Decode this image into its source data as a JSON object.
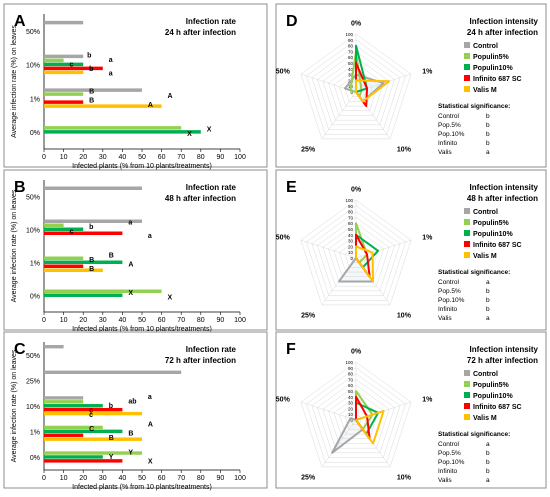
{
  "colors": {
    "Control": "#a6a6a6",
    "Populin5%": "#92d050",
    "Populin10%": "#00b050",
    "Infinito 687 SC": "#ff0000",
    "Valis M": "#ffc000"
  },
  "chart_data": [
    {
      "panel": "A",
      "type": "bar",
      "orientation": "horizontal",
      "title": "Infection rate",
      "subtitle": "24 h after infection",
      "xlabel": "Infected plants (% from 10 plants/treatments)",
      "ylabel": "Average infection rate (%) on leaves",
      "xlim": [
        0,
        100
      ],
      "x_ticks": [
        "0",
        "10",
        "20",
        "30",
        "40",
        "50",
        "60",
        "70",
        "80",
        "90",
        "100"
      ],
      "categories": [
        "50%",
        "10%",
        "1%",
        "0%"
      ],
      "series": [
        {
          "name": "Control",
          "values": [
            20,
            20,
            50,
            0
          ]
        },
        {
          "name": "Populin5%",
          "values": [
            0,
            10,
            20,
            70
          ]
        },
        {
          "name": "Populin10%",
          "values": [
            0,
            20,
            0,
            80
          ]
        },
        {
          "name": "Infinito 687 SC",
          "values": [
            0,
            30,
            20,
            0
          ]
        },
        {
          "name": "Valis M",
          "values": [
            0,
            20,
            60,
            0
          ]
        }
      ],
      "annotations": [
        {
          "category": "10%",
          "text": "b",
          "x": 21
        },
        {
          "category": "10%",
          "text": "a",
          "x": 32
        },
        {
          "category": "10%",
          "text": "c",
          "x": 12
        },
        {
          "category": "10%",
          "text": "b",
          "x": 22
        },
        {
          "category": "10%",
          "text": "a",
          "x": 32
        },
        {
          "category": "1%",
          "text": "B",
          "x": 22
        },
        {
          "category": "1%",
          "text": "A",
          "x": 62
        },
        {
          "category": "1%",
          "text": "B",
          "x": 22
        },
        {
          "category": "1%",
          "text": "A",
          "x": 52
        },
        {
          "category": "0%",
          "text": "X",
          "x": 82
        },
        {
          "category": "0%",
          "text": "X",
          "x": 72
        }
      ]
    },
    {
      "panel": "B",
      "type": "bar",
      "orientation": "horizontal",
      "title": "Infection rate",
      "subtitle": "48 h after infection",
      "xlabel": "Infected plants (% from 10 plants/treatments)",
      "ylabel": "Average infection rate (%) on leaves",
      "xlim": [
        0,
        100
      ],
      "x_ticks": [
        "0",
        "10",
        "20",
        "30",
        "40",
        "50",
        "60",
        "70",
        "80",
        "90",
        "100"
      ],
      "categories": [
        "50%",
        "10%",
        "1%",
        "0%"
      ],
      "series": [
        {
          "name": "Control",
          "values": [
            50,
            50,
            0,
            0
          ]
        },
        {
          "name": "Populin5%",
          "values": [
            0,
            10,
            20,
            60
          ]
        },
        {
          "name": "Populin10%",
          "values": [
            0,
            20,
            40,
            40
          ]
        },
        {
          "name": "Infinito 687 SC",
          "values": [
            0,
            40,
            20,
            0
          ]
        },
        {
          "name": "Valis M",
          "values": [
            0,
            0,
            30,
            0
          ]
        }
      ],
      "annotations": [
        {
          "category": "10%",
          "text": "a",
          "x": 42
        },
        {
          "category": "10%",
          "text": "b",
          "x": 22
        },
        {
          "category": "10%",
          "text": "c",
          "x": 12
        },
        {
          "category": "10%",
          "text": "a",
          "x": 52
        },
        {
          "category": "1%",
          "text": "B",
          "x": 32
        },
        {
          "category": "1%",
          "text": "B",
          "x": 22
        },
        {
          "category": "1%",
          "text": "A",
          "x": 42
        },
        {
          "category": "1%",
          "text": "B",
          "x": 22
        },
        {
          "category": "0%",
          "text": "X",
          "x": 42
        },
        {
          "category": "0%",
          "text": "X",
          "x": 62
        }
      ]
    },
    {
      "panel": "C",
      "type": "bar",
      "orientation": "horizontal",
      "title": "Infection rate",
      "subtitle": "72 h after infection",
      "xlabel": "Infected plants (% from 10 plants/treatments)",
      "ylabel": "Average infection rate (%) on leaves",
      "xlim": [
        0,
        100
      ],
      "x_ticks": [
        "0",
        "10",
        "20",
        "30",
        "40",
        "50",
        "60",
        "70",
        "80",
        "90",
        "100"
      ],
      "categories": [
        "50%",
        "25%",
        "10%",
        "1%",
        "0%"
      ],
      "series": [
        {
          "name": "Control",
          "values": [
            10,
            70,
            20,
            0,
            0
          ]
        },
        {
          "name": "Populin5%",
          "values": [
            0,
            0,
            20,
            30,
            50
          ]
        },
        {
          "name": "Populin10%",
          "values": [
            0,
            0,
            30,
            40,
            30
          ]
        },
        {
          "name": "Infinito 687 SC",
          "values": [
            0,
            0,
            40,
            20,
            40
          ]
        },
        {
          "name": "Valis M",
          "values": [
            0,
            0,
            50,
            50,
            0
          ]
        }
      ],
      "annotations": [
        {
          "category": "10%",
          "text": "a",
          "x": 52
        },
        {
          "category": "10%",
          "text": "ab",
          "x": 42
        },
        {
          "category": "10%",
          "text": "b",
          "x": 32
        },
        {
          "category": "10%",
          "text": "c",
          "x": 22
        },
        {
          "category": "10%",
          "text": "c",
          "x": 22
        },
        {
          "category": "1%",
          "text": "A",
          "x": 52
        },
        {
          "category": "1%",
          "text": "C",
          "x": 22
        },
        {
          "category": "1%",
          "text": "B",
          "x": 42
        },
        {
          "category": "1%",
          "text": "B",
          "x": 32
        },
        {
          "category": "0%",
          "text": "Y",
          "x": 42
        },
        {
          "category": "0%",
          "text": "Y",
          "x": 32
        },
        {
          "category": "0%",
          "text": "X",
          "x": 52
        }
      ]
    },
    {
      "panel": "D",
      "type": "radar",
      "title": "Infection intensity",
      "subtitle": "24 h after infection",
      "axes": [
        "0%",
        "1%",
        "10%",
        "25%",
        "50%"
      ],
      "radial_ticks": [
        "0",
        "10",
        "20",
        "30",
        "40",
        "50",
        "60",
        "70",
        "80",
        "90",
        "100"
      ],
      "rlim": [
        0,
        100
      ],
      "series": [
        {
          "name": "Control",
          "values": [
            30,
            50,
            20,
            0,
            20
          ]
        },
        {
          "name": "Populin5%",
          "values": [
            70,
            10,
            10,
            0,
            10
          ]
        },
        {
          "name": "Populin10%",
          "values": [
            80,
            20,
            0,
            0,
            0
          ]
        },
        {
          "name": "Infinito 687 SC",
          "values": [
            50,
            20,
            30,
            0,
            0
          ]
        },
        {
          "name": "Valis M",
          "values": [
            20,
            60,
            20,
            0,
            0
          ]
        }
      ],
      "significance_title": "Statistical significance:",
      "significance": [
        {
          "label": "Control",
          "group": "b"
        },
        {
          "label": "Pop.5%",
          "group": "b"
        },
        {
          "label": "Pop.10%",
          "group": "b"
        },
        {
          "label": "Infinito",
          "group": "b"
        },
        {
          "label": "Valis",
          "group": "a"
        }
      ]
    },
    {
      "panel": "E",
      "type": "radar",
      "title": "Infection intensity",
      "subtitle": "48 h after infection",
      "axes": [
        "0%",
        "1%",
        "10%",
        "25%",
        "50%"
      ],
      "radial_ticks": [
        "0",
        "10",
        "20",
        "30",
        "40",
        "50",
        "60",
        "70",
        "80",
        "90",
        "100"
      ],
      "rlim": [
        0,
        100
      ],
      "series": [
        {
          "name": "Control",
          "values": [
            0,
            0,
            50,
            50,
            0
          ]
        },
        {
          "name": "Populin5%",
          "values": [
            60,
            20,
            10,
            0,
            0
          ]
        },
        {
          "name": "Populin10%",
          "values": [
            40,
            40,
            20,
            0,
            0
          ]
        },
        {
          "name": "Infinito 687 SC",
          "values": [
            40,
            20,
            40,
            0,
            0
          ]
        },
        {
          "name": "Valis M",
          "values": [
            20,
            30,
            50,
            0,
            0
          ]
        }
      ],
      "significance_title": "Statistical significance:",
      "significance": [
        {
          "label": "Control",
          "group": "a"
        },
        {
          "label": "Pop.5%",
          "group": "b"
        },
        {
          "label": "Pop.10%",
          "group": "b"
        },
        {
          "label": "Infinito",
          "group": "b"
        },
        {
          "label": "Valis",
          "group": "a"
        }
      ]
    },
    {
      "panel": "F",
      "type": "radar",
      "title": "Infection intensity",
      "subtitle": "72 h after infection",
      "axes": [
        "0%",
        "1%",
        "10%",
        "25%",
        "50%"
      ],
      "radial_ticks": [
        "0",
        "10",
        "20",
        "30",
        "40",
        "50",
        "60",
        "70",
        "80",
        "90",
        "100"
      ],
      "rlim": [
        0,
        100
      ],
      "series": [
        {
          "name": "Control",
          "values": [
            0,
            0,
            20,
            70,
            10
          ]
        },
        {
          "name": "Populin5%",
          "values": [
            50,
            30,
            20,
            0,
            0
          ]
        },
        {
          "name": "Populin10%",
          "values": [
            30,
            40,
            30,
            0,
            0
          ]
        },
        {
          "name": "Infinito 687 SC",
          "values": [
            40,
            20,
            40,
            0,
            0
          ]
        },
        {
          "name": "Valis M",
          "values": [
            0,
            50,
            50,
            0,
            0
          ]
        }
      ],
      "significance_title": "Statistical significance:",
      "significance": [
        {
          "label": "Control",
          "group": "a"
        },
        {
          "label": "Pop.5%",
          "group": "b"
        },
        {
          "label": "Pop.10%",
          "group": "b"
        },
        {
          "label": "Infinito",
          "group": "b"
        },
        {
          "label": "Valis",
          "group": "a"
        }
      ]
    }
  ]
}
